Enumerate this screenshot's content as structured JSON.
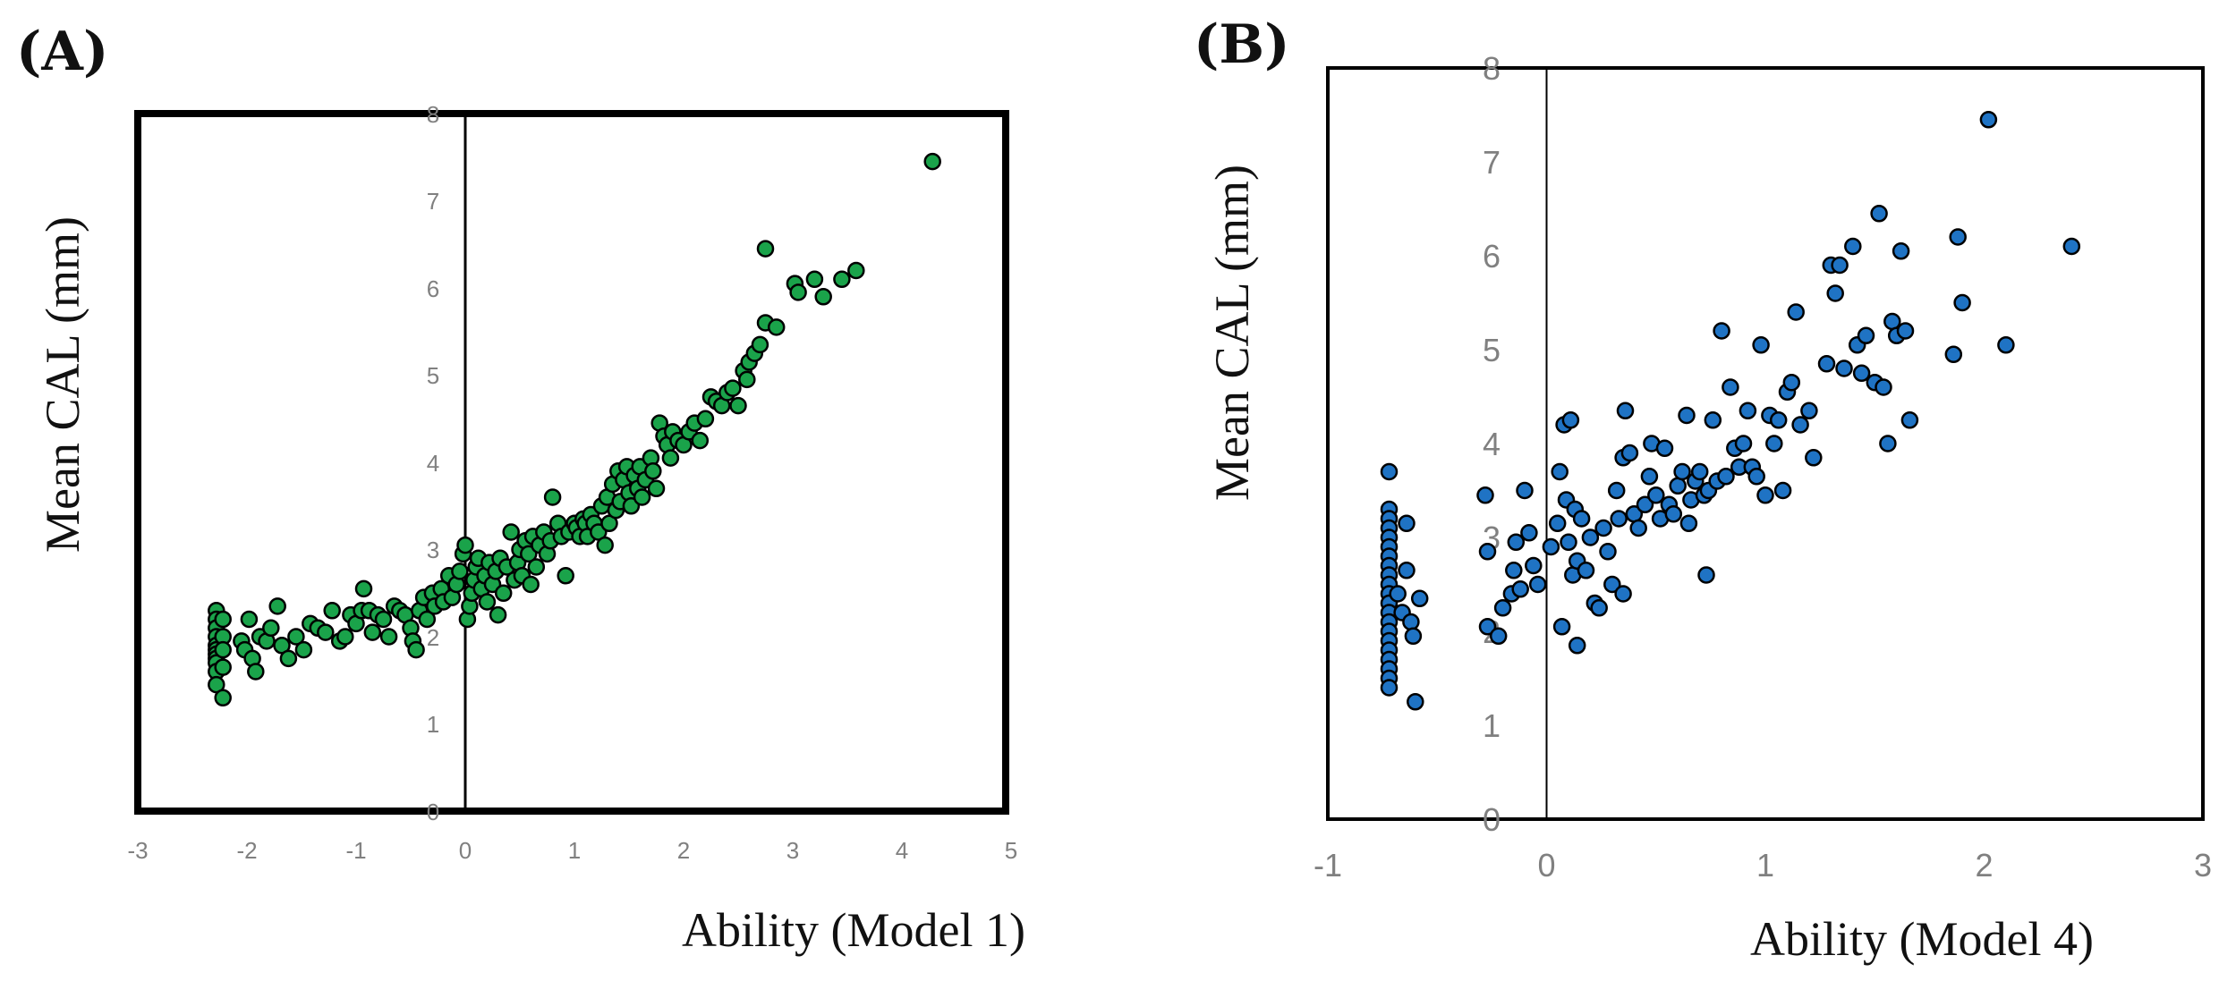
{
  "chart_data": [
    {
      "panel_label": "(A)",
      "type": "scatter",
      "xlabel": "Ability (Model 1)",
      "ylabel": "Mean CAL  (mm)",
      "xlim": [
        -3,
        5
      ],
      "ylim": [
        0,
        8
      ],
      "xticks": [
        "-3",
        "-2",
        "-1",
        "0",
        "1",
        "2",
        "3",
        "4",
        "5"
      ],
      "yticks": [
        "8",
        "7",
        "6",
        "5",
        "4",
        "3",
        "2",
        "1",
        "0"
      ],
      "grid": false,
      "marker_color": "#1aa34a",
      "points": [
        [
          -2.28,
          2.3
        ],
        [
          -2.28,
          2.2
        ],
        [
          -2.28,
          2.1
        ],
        [
          -2.28,
          2.0
        ],
        [
          -2.28,
          1.9
        ],
        [
          -2.28,
          1.85
        ],
        [
          -2.28,
          1.8
        ],
        [
          -2.28,
          1.75
        ],
        [
          -2.28,
          1.7
        ],
        [
          -2.28,
          1.6
        ],
        [
          -2.28,
          1.45
        ],
        [
          -2.22,
          2.2
        ],
        [
          -2.22,
          2.0
        ],
        [
          -2.22,
          1.85
        ],
        [
          -2.22,
          1.65
        ],
        [
          -2.22,
          1.3
        ],
        [
          -2.05,
          1.95
        ],
        [
          -2.02,
          1.85
        ],
        [
          -1.98,
          2.2
        ],
        [
          -1.95,
          1.75
        ],
        [
          -1.92,
          1.6
        ],
        [
          -1.88,
          2.0
        ],
        [
          -1.82,
          1.95
        ],
        [
          -1.78,
          2.1
        ],
        [
          -1.72,
          2.35
        ],
        [
          -1.68,
          1.9
        ],
        [
          -1.62,
          1.75
        ],
        [
          -1.55,
          2.0
        ],
        [
          -1.48,
          1.85
        ],
        [
          -1.42,
          2.15
        ],
        [
          -1.35,
          2.1
        ],
        [
          -1.28,
          2.05
        ],
        [
          -1.22,
          2.3
        ],
        [
          -1.15,
          1.95
        ],
        [
          -1.1,
          2.0
        ],
        [
          -1.05,
          2.25
        ],
        [
          -1.0,
          2.15
        ],
        [
          -0.95,
          2.3
        ],
        [
          -0.93,
          2.55
        ],
        [
          -0.88,
          2.3
        ],
        [
          -0.85,
          2.05
        ],
        [
          -0.8,
          2.25
        ],
        [
          -0.75,
          2.2
        ],
        [
          -0.7,
          2.0
        ],
        [
          -0.65,
          2.35
        ],
        [
          -0.6,
          2.3
        ],
        [
          -0.55,
          2.25
        ],
        [
          -0.5,
          2.1
        ],
        [
          -0.48,
          1.95
        ],
        [
          -0.45,
          1.85
        ],
        [
          -0.42,
          2.3
        ],
        [
          -0.38,
          2.45
        ],
        [
          -0.35,
          2.2
        ],
        [
          -0.3,
          2.5
        ],
        [
          -0.28,
          2.35
        ],
        [
          -0.22,
          2.55
        ],
        [
          -0.2,
          2.4
        ],
        [
          -0.15,
          2.7
        ],
        [
          -0.12,
          2.45
        ],
        [
          -0.08,
          2.6
        ],
        [
          -0.05,
          2.75
        ],
        [
          -0.02,
          2.95
        ],
        [
          0.0,
          3.05
        ],
        [
          0.02,
          2.2
        ],
        [
          0.04,
          2.35
        ],
        [
          0.06,
          2.5
        ],
        [
          0.08,
          2.65
        ],
        [
          0.1,
          2.8
        ],
        [
          0.12,
          2.9
        ],
        [
          0.15,
          2.55
        ],
        [
          0.18,
          2.7
        ],
        [
          0.2,
          2.4
        ],
        [
          0.22,
          2.85
        ],
        [
          0.25,
          2.6
        ],
        [
          0.28,
          2.75
        ],
        [
          0.3,
          2.25
        ],
        [
          0.32,
          2.9
        ],
        [
          0.35,
          2.5
        ],
        [
          0.38,
          2.8
        ],
        [
          0.42,
          3.2
        ],
        [
          0.45,
          2.65
        ],
        [
          0.48,
          2.85
        ],
        [
          0.5,
          3.0
        ],
        [
          0.52,
          2.7
        ],
        [
          0.55,
          3.1
        ],
        [
          0.58,
          2.95
        ],
        [
          0.6,
          2.6
        ],
        [
          0.62,
          3.15
        ],
        [
          0.65,
          2.8
        ],
        [
          0.68,
          3.05
        ],
        [
          0.72,
          3.2
        ],
        [
          0.75,
          2.95
        ],
        [
          0.78,
          3.1
        ],
        [
          0.8,
          3.6
        ],
        [
          0.85,
          3.3
        ],
        [
          0.88,
          3.15
        ],
        [
          0.92,
          2.7
        ],
        [
          0.95,
          3.2
        ],
        [
          1.0,
          3.3
        ],
        [
          1.02,
          3.25
        ],
        [
          1.05,
          3.15
        ],
        [
          1.08,
          3.35
        ],
        [
          1.1,
          3.3
        ],
        [
          1.12,
          3.15
        ],
        [
          1.15,
          3.4
        ],
        [
          1.18,
          3.3
        ],
        [
          1.22,
          3.2
        ],
        [
          1.25,
          3.5
        ],
        [
          1.28,
          3.05
        ],
        [
          1.3,
          3.6
        ],
        [
          1.32,
          3.3
        ],
        [
          1.35,
          3.75
        ],
        [
          1.38,
          3.45
        ],
        [
          1.4,
          3.9
        ],
        [
          1.42,
          3.55
        ],
        [
          1.45,
          3.8
        ],
        [
          1.48,
          3.95
        ],
        [
          1.5,
          3.65
        ],
        [
          1.52,
          3.5
        ],
        [
          1.55,
          3.85
        ],
        [
          1.58,
          3.7
        ],
        [
          1.6,
          3.95
        ],
        [
          1.62,
          3.6
        ],
        [
          1.65,
          3.8
        ],
        [
          1.7,
          4.05
        ],
        [
          1.72,
          3.9
        ],
        [
          1.75,
          3.7
        ],
        [
          1.78,
          4.45
        ],
        [
          1.82,
          4.3
        ],
        [
          1.85,
          4.2
        ],
        [
          1.88,
          4.05
        ],
        [
          1.9,
          4.35
        ],
        [
          1.95,
          4.25
        ],
        [
          2.0,
          4.2
        ],
        [
          2.05,
          4.35
        ],
        [
          2.1,
          4.45
        ],
        [
          2.15,
          4.25
        ],
        [
          2.2,
          4.5
        ],
        [
          2.25,
          4.75
        ],
        [
          2.3,
          4.7
        ],
        [
          2.35,
          4.65
        ],
        [
          2.4,
          4.8
        ],
        [
          2.45,
          4.85
        ],
        [
          2.5,
          4.65
        ],
        [
          2.55,
          5.05
        ],
        [
          2.58,
          4.95
        ],
        [
          2.6,
          5.15
        ],
        [
          2.65,
          5.25
        ],
        [
          2.7,
          5.35
        ],
        [
          2.75,
          5.6
        ],
        [
          2.75,
          6.45
        ],
        [
          2.85,
          5.55
        ],
        [
          3.02,
          6.05
        ],
        [
          3.05,
          5.95
        ],
        [
          3.2,
          6.1
        ],
        [
          3.28,
          5.9
        ],
        [
          3.45,
          6.1
        ],
        [
          3.58,
          6.2
        ],
        [
          4.28,
          7.45
        ]
      ]
    },
    {
      "panel_label": "(B)",
      "type": "scatter",
      "xlabel": "Ability (Model 4)",
      "ylabel": "Mean CAL  (mm)",
      "xlim": [
        -1,
        3
      ],
      "ylim": [
        0,
        8
      ],
      "xticks": [
        "-1",
        "0",
        "1",
        "2",
        "3"
      ],
      "yticks": [
        "8",
        "7",
        "6",
        "5",
        "4",
        "3",
        "2",
        "1",
        "0"
      ],
      "grid": false,
      "marker_color": "#1f73c4",
      "points": [
        [
          -0.72,
          3.7
        ],
        [
          -0.72,
          3.3
        ],
        [
          -0.72,
          3.2
        ],
        [
          -0.72,
          3.1
        ],
        [
          -0.72,
          3.0
        ],
        [
          -0.72,
          2.9
        ],
        [
          -0.72,
          2.8
        ],
        [
          -0.72,
          2.7
        ],
        [
          -0.72,
          2.6
        ],
        [
          -0.72,
          2.5
        ],
        [
          -0.72,
          2.4
        ],
        [
          -0.72,
          2.3
        ],
        [
          -0.72,
          2.2
        ],
        [
          -0.72,
          2.1
        ],
        [
          -0.72,
          2.0
        ],
        [
          -0.72,
          1.9
        ],
        [
          -0.72,
          1.8
        ],
        [
          -0.72,
          1.7
        ],
        [
          -0.72,
          1.6
        ],
        [
          -0.72,
          1.5
        ],
        [
          -0.72,
          1.4
        ],
        [
          -0.68,
          2.4
        ],
        [
          -0.66,
          2.2
        ],
        [
          -0.64,
          3.15
        ],
        [
          -0.64,
          2.65
        ],
        [
          -0.62,
          2.1
        ],
        [
          -0.61,
          1.95
        ],
        [
          -0.6,
          1.25
        ],
        [
          -0.58,
          2.35
        ],
        [
          -0.28,
          3.45
        ],
        [
          -0.27,
          2.85
        ],
        [
          -0.27,
          2.05
        ],
        [
          -0.22,
          1.95
        ],
        [
          -0.2,
          2.25
        ],
        [
          -0.16,
          2.4
        ],
        [
          -0.15,
          2.65
        ],
        [
          -0.14,
          2.95
        ],
        [
          -0.12,
          2.45
        ],
        [
          -0.1,
          3.5
        ],
        [
          -0.08,
          3.05
        ],
        [
          -0.06,
          2.7
        ],
        [
          -0.04,
          2.5
        ],
        [
          0.02,
          2.9
        ],
        [
          0.05,
          3.15
        ],
        [
          0.06,
          3.7
        ],
        [
          0.07,
          2.05
        ],
        [
          0.08,
          4.2
        ],
        [
          0.09,
          3.4
        ],
        [
          0.1,
          2.95
        ],
        [
          0.11,
          4.25
        ],
        [
          0.12,
          2.6
        ],
        [
          0.13,
          3.3
        ],
        [
          0.14,
          2.75
        ],
        [
          0.14,
          1.85
        ],
        [
          0.16,
          3.2
        ],
        [
          0.18,
          2.65
        ],
        [
          0.2,
          3.0
        ],
        [
          0.22,
          2.3
        ],
        [
          0.24,
          2.25
        ],
        [
          0.26,
          3.1
        ],
        [
          0.28,
          2.85
        ],
        [
          0.3,
          2.5
        ],
        [
          0.32,
          3.5
        ],
        [
          0.33,
          3.2
        ],
        [
          0.35,
          2.4
        ],
        [
          0.35,
          3.85
        ],
        [
          0.36,
          4.35
        ],
        [
          0.38,
          3.9
        ],
        [
          0.4,
          3.25
        ],
        [
          0.42,
          3.1
        ],
        [
          0.45,
          3.35
        ],
        [
          0.47,
          3.65
        ],
        [
          0.48,
          4.0
        ],
        [
          0.5,
          3.45
        ],
        [
          0.52,
          3.2
        ],
        [
          0.54,
          3.95
        ],
        [
          0.56,
          3.35
        ],
        [
          0.58,
          3.25
        ],
        [
          0.6,
          3.55
        ],
        [
          0.62,
          3.7
        ],
        [
          0.64,
          4.3
        ],
        [
          0.65,
          3.15
        ],
        [
          0.66,
          3.4
        ],
        [
          0.68,
          3.6
        ],
        [
          0.7,
          3.7
        ],
        [
          0.72,
          3.45
        ],
        [
          0.73,
          2.6
        ],
        [
          0.74,
          3.5
        ],
        [
          0.76,
          4.25
        ],
        [
          0.78,
          3.6
        ],
        [
          0.8,
          5.2
        ],
        [
          0.82,
          3.65
        ],
        [
          0.84,
          4.6
        ],
        [
          0.86,
          3.95
        ],
        [
          0.88,
          3.75
        ],
        [
          0.9,
          4.0
        ],
        [
          0.92,
          4.35
        ],
        [
          0.94,
          3.75
        ],
        [
          0.96,
          3.65
        ],
        [
          0.98,
          5.05
        ],
        [
          1.0,
          3.45
        ],
        [
          1.02,
          4.3
        ],
        [
          1.04,
          4.0
        ],
        [
          1.06,
          4.25
        ],
        [
          1.08,
          3.5
        ],
        [
          1.1,
          4.55
        ],
        [
          1.12,
          4.65
        ],
        [
          1.14,
          5.4
        ],
        [
          1.16,
          4.2
        ],
        [
          1.2,
          4.35
        ],
        [
          1.22,
          3.85
        ],
        [
          1.28,
          4.85
        ],
        [
          1.3,
          5.9
        ],
        [
          1.32,
          5.6
        ],
        [
          1.34,
          5.9
        ],
        [
          1.36,
          4.8
        ],
        [
          1.4,
          6.1
        ],
        [
          1.42,
          5.05
        ],
        [
          1.44,
          4.75
        ],
        [
          1.46,
          5.15
        ],
        [
          1.5,
          4.65
        ],
        [
          1.52,
          6.45
        ],
        [
          1.54,
          4.6
        ],
        [
          1.56,
          4.0
        ],
        [
          1.58,
          5.3
        ],
        [
          1.6,
          5.15
        ],
        [
          1.62,
          6.05
        ],
        [
          1.64,
          5.2
        ],
        [
          1.66,
          4.25
        ],
        [
          1.86,
          4.95
        ],
        [
          1.88,
          6.2
        ],
        [
          1.9,
          5.5
        ],
        [
          2.02,
          7.45
        ],
        [
          2.1,
          5.05
        ],
        [
          2.4,
          6.1
        ]
      ]
    }
  ]
}
